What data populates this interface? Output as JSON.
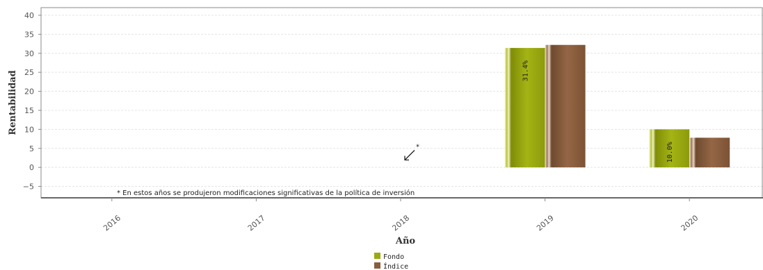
{
  "chart_data": {
    "type": "bar",
    "xlabel": "Año",
    "ylabel": "Rentabilidad",
    "categories": [
      "2016",
      "2017",
      "2018",
      "2019",
      "2020"
    ],
    "ylim": [
      -8,
      42
    ],
    "yticks": [
      -5,
      0,
      5,
      10,
      15,
      20,
      25,
      30,
      35,
      40
    ],
    "ytick_labels": [
      "−5",
      "0",
      "5",
      "10",
      "15",
      "20",
      "25",
      "30",
      "35",
      "40"
    ],
    "grid": true,
    "series": [
      {
        "name": "Fondo",
        "values": [
          null,
          null,
          null,
          31.4,
          10.0
        ],
        "data_labels": [
          "",
          "",
          "",
          "31.4%",
          "10.0%"
        ]
      },
      {
        "name": "Índice",
        "values": [
          null,
          null,
          null,
          32.2,
          7.8
        ],
        "data_labels": [
          "",
          "",
          "",
          "",
          ""
        ]
      }
    ],
    "annotation_marker": {
      "category": "2018",
      "text": "*"
    },
    "note": "* En estos años se produjeron modificaciones significativas de la política de inversión",
    "legend_position": "bottom-center",
    "colors": {
      "Fondo": "#9aaa10",
      "Índice": "#8a5e3c",
      "grid": "#e4e4e4",
      "axis": "#888888"
    }
  }
}
